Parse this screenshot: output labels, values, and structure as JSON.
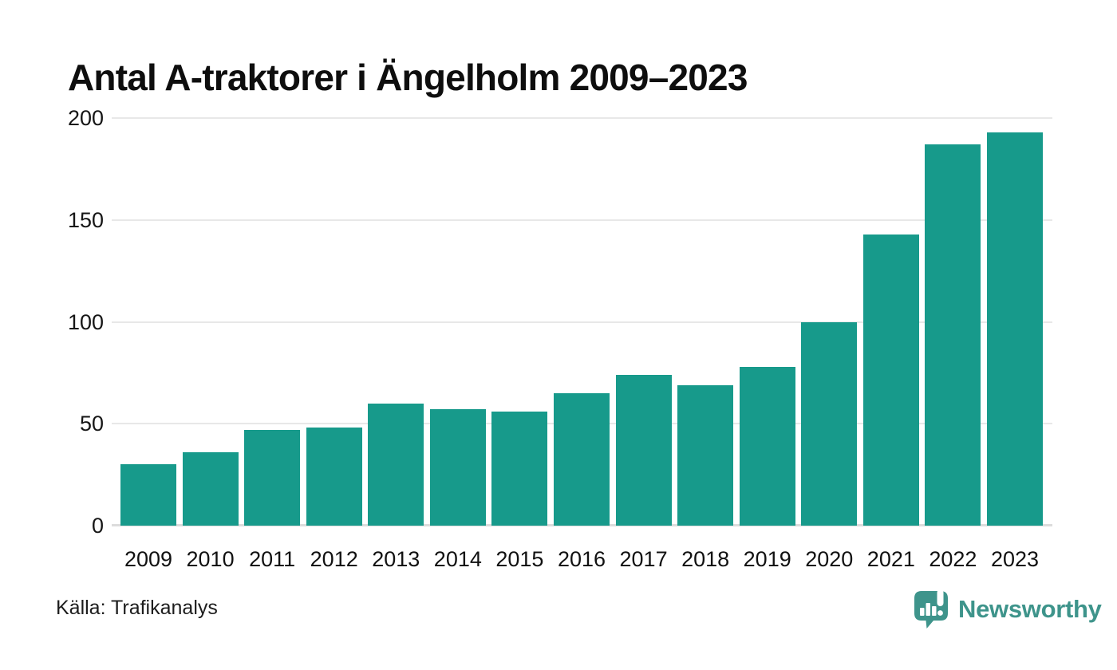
{
  "chart_data": {
    "type": "bar",
    "title": "Antal A-traktorer i Ängelholm 2009–2023",
    "categories": [
      "2009",
      "2010",
      "2011",
      "2012",
      "2013",
      "2014",
      "2015",
      "2016",
      "2017",
      "2018",
      "2019",
      "2020",
      "2021",
      "2022",
      "2023"
    ],
    "values": [
      30,
      36,
      47,
      48,
      60,
      57,
      56,
      65,
      74,
      69,
      78,
      100,
      143,
      187,
      193
    ],
    "xlabel": "",
    "ylabel": "",
    "ylim": [
      0,
      200
    ],
    "yticks": [
      0,
      50,
      100,
      150,
      200
    ],
    "grid": true,
    "legend": "none",
    "bar_color": "#179a8b"
  },
  "footer": {
    "source_label": "Källa: Trafikanalys",
    "brand": {
      "name": "Newsworthy",
      "color": "#3e948b",
      "icon": "newsworthy-speech-bubble-barchart-icon"
    }
  },
  "colors": {
    "background": "#ffffff",
    "title_text": "#0e0e0e",
    "axis_text": "#161616",
    "gridline": "#e8e8e8",
    "baseline": "#dcdcdc"
  }
}
